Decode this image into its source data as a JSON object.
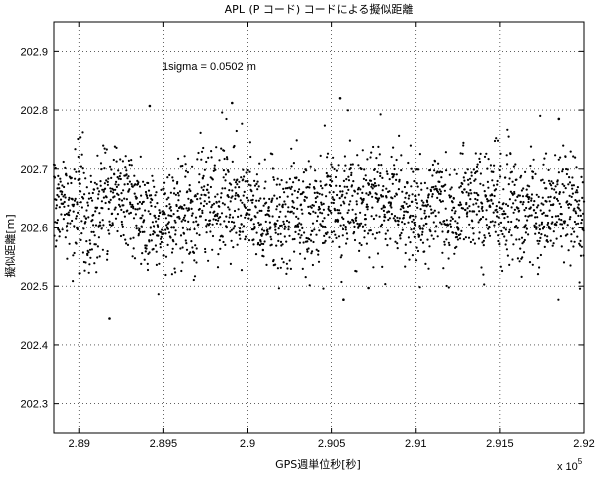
{
  "chart_data": {
    "type": "scatter",
    "title": "APL (P コード) コードによる擬似距離",
    "xlabel": "GPS週単位秒[秒]",
    "ylabel": "擬似距離[m]",
    "x_exponent_label": "x 10",
    "x_exponent_power": "5",
    "annotation": "1sigma = 0.0502 m",
    "xlim": [
      2.8885,
      2.92
    ],
    "ylim": [
      202.25,
      202.95
    ],
    "x_tick_values": [
      2.89,
      2.895,
      2.9,
      2.905,
      2.91,
      2.915,
      2.92
    ],
    "x_tick_labels": [
      "2.89",
      "2.895",
      "2.9",
      "2.905",
      "2.91",
      "2.915",
      "2.92"
    ],
    "y_tick_values": [
      202.3,
      202.4,
      202.5,
      202.6,
      202.7,
      202.8,
      202.9
    ],
    "y_tick_labels": [
      "202.3",
      "202.4",
      "202.5",
      "202.6",
      "202.7",
      "202.8",
      "202.9"
    ],
    "grid": true,
    "marker_color": "#000000",
    "series": [
      {
        "x_range": [
          2.8885,
          2.92
        ],
        "mean": 202.64,
        "sigma": 0.0502,
        "point_count": 2200,
        "notable_points": [
          {
            "x": 2.8918,
            "y": 202.445
          },
          {
            "x": 2.8942,
            "y": 202.807
          },
          {
            "x": 2.8991,
            "y": 202.812
          },
          {
            "x": 2.9055,
            "y": 202.82
          },
          {
            "x": 2.9057,
            "y": 202.477
          },
          {
            "x": 2.9072,
            "y": 202.497
          },
          {
            "x": 2.9185,
            "y": 202.785
          }
        ]
      }
    ]
  }
}
